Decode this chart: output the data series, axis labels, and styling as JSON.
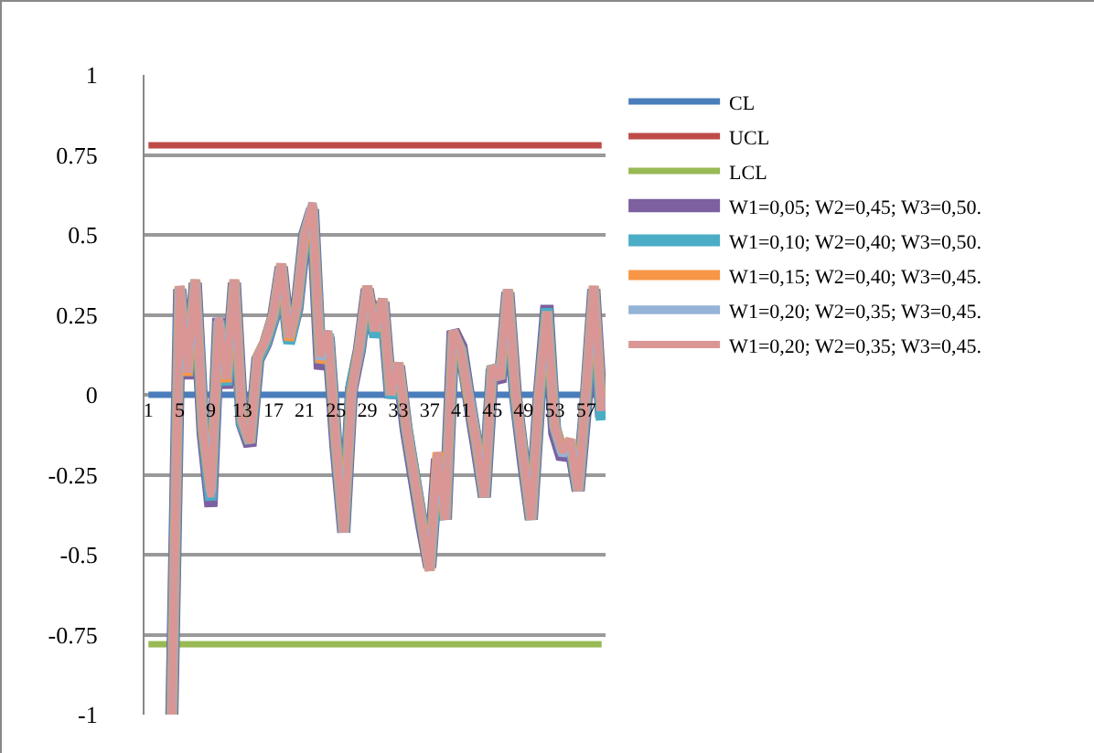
{
  "chart_data": {
    "type": "line",
    "categories": [
      "1",
      null,
      null,
      null,
      "5",
      null,
      null,
      null,
      "9",
      null,
      null,
      null,
      "13",
      null,
      null,
      null,
      "17",
      null,
      null,
      null,
      "21",
      null,
      null,
      null,
      "25",
      null,
      null,
      null,
      "29",
      null,
      null,
      null,
      "33",
      null,
      null,
      null,
      "37",
      null,
      null,
      null,
      "41",
      null,
      null,
      null,
      "45",
      null,
      null,
      null,
      "49",
      null,
      null,
      null,
      "53",
      null,
      null,
      null,
      "57",
      null,
      null
    ],
    "ylim": [
      -1,
      1
    ],
    "yticks": [
      -1,
      -0.75,
      -0.5,
      -0.25,
      0,
      0.25,
      0.5,
      0.75,
      1
    ],
    "grid": "y",
    "legend": "right",
    "marker": "none",
    "line_style": "solid",
    "series": [
      {
        "name": "CL",
        "color": "#4a7ebb",
        "values": [
          0,
          0,
          0,
          0,
          0,
          0,
          0,
          0,
          0,
          0,
          0,
          0,
          0,
          0,
          0,
          0,
          0,
          0,
          0,
          0,
          0,
          0,
          0,
          0,
          0,
          0,
          0,
          0,
          0,
          0,
          0,
          0,
          0,
          0,
          0,
          0,
          0,
          0,
          0,
          0,
          0,
          0,
          0,
          0,
          0,
          0,
          0,
          0,
          0,
          0,
          0,
          0,
          0,
          0,
          0,
          0,
          0,
          0,
          0
        ]
      },
      {
        "name": "UCL",
        "color": "#be4b48",
        "values": [
          0.78,
          0.78,
          0.78,
          0.78,
          0.78,
          0.78,
          0.78,
          0.78,
          0.78,
          0.78,
          0.78,
          0.78,
          0.78,
          0.78,
          0.78,
          0.78,
          0.78,
          0.78,
          0.78,
          0.78,
          0.78,
          0.78,
          0.78,
          0.78,
          0.78,
          0.78,
          0.78,
          0.78,
          0.78,
          0.78,
          0.78,
          0.78,
          0.78,
          0.78,
          0.78,
          0.78,
          0.78,
          0.78,
          0.78,
          0.78,
          0.78,
          0.78,
          0.78,
          0.78,
          0.78,
          0.78,
          0.78,
          0.78,
          0.78,
          0.78,
          0.78,
          0.78,
          0.78,
          0.78,
          0.78,
          0.78,
          0.78,
          0.78,
          0.78
        ]
      },
      {
        "name": "LCL",
        "color": "#98b954",
        "values": [
          -0.78,
          -0.78,
          -0.78,
          -0.78,
          -0.78,
          -0.78,
          -0.78,
          -0.78,
          -0.78,
          -0.78,
          -0.78,
          -0.78,
          -0.78,
          -0.78,
          -0.78,
          -0.78,
          -0.78,
          -0.78,
          -0.78,
          -0.78,
          -0.78,
          -0.78,
          -0.78,
          -0.78,
          -0.78,
          -0.78,
          -0.78,
          -0.78,
          -0.78,
          -0.78,
          -0.78,
          -0.78,
          -0.78,
          -0.78,
          -0.78,
          -0.78,
          -0.78,
          -0.78,
          -0.78,
          -0.78,
          -0.78,
          -0.78,
          -0.78,
          -0.78,
          -0.78,
          -0.78,
          -0.78,
          -0.78,
          -0.78,
          -0.78,
          -0.78,
          -0.78,
          -0.78,
          -0.78,
          -0.78,
          -0.78,
          -0.78,
          -0.78,
          -0.78
        ]
      },
      {
        "name": "W1=0,05; W2=0,45; W3=0,50.",
        "color": "#7d60a0",
        "values": [
          null,
          null,
          null,
          -1,
          0.33,
          0.05,
          0.35,
          -0.12,
          -0.35,
          0.24,
          0.02,
          0.35,
          -0.09,
          -0.16,
          0.11,
          0.16,
          0.24,
          0.4,
          0.17,
          0.27,
          0.5,
          0.58,
          0.08,
          0.18,
          -0.16,
          -0.43,
          0.02,
          0.14,
          0.33,
          0.19,
          0.29,
          -0.01,
          0.09,
          -0.11,
          -0.26,
          -0.41,
          -0.54,
          -0.2,
          -0.39,
          0.2,
          0.15,
          -0.01,
          -0.16,
          -0.32,
          0.08,
          0.04,
          0.32,
          -0.01,
          -0.21,
          -0.39,
          -0.01,
          0.28,
          -0.12,
          -0.2,
          -0.16,
          -0.3,
          -0.02,
          0.33,
          -0.07
        ]
      },
      {
        "name": "W1=0,10; W2=0,40; W3=0,50.",
        "color": "#4bacc6",
        "values": [
          null,
          null,
          null,
          -1,
          0.33,
          0.06,
          0.35,
          -0.11,
          -0.33,
          0.23,
          0.03,
          0.35,
          -0.09,
          -0.15,
          0.11,
          0.16,
          0.24,
          0.4,
          0.16,
          0.27,
          0.5,
          0.58,
          0.1,
          0.19,
          -0.15,
          -0.43,
          0.03,
          0.14,
          0.33,
          0.18,
          0.29,
          -0.01,
          0.09,
          -0.1,
          -0.25,
          -0.4,
          -0.54,
          -0.22,
          -0.39,
          0.19,
          0.14,
          -0.01,
          -0.15,
          -0.32,
          0.09,
          0.05,
          0.32,
          -0.01,
          -0.2,
          -0.39,
          -0.01,
          0.27,
          -0.1,
          -0.18,
          -0.15,
          -0.3,
          -0.01,
          0.33,
          -0.08
        ]
      },
      {
        "name": "W1=0,15; W2=0,40; W3=0,45.",
        "color": "#f79646",
        "values": [
          null,
          null,
          null,
          -1,
          0.34,
          0.06,
          0.36,
          -0.11,
          -0.3,
          0.23,
          0.04,
          0.36,
          -0.08,
          -0.15,
          0.12,
          0.17,
          0.25,
          0.41,
          0.17,
          0.28,
          0.5,
          0.59,
          0.1,
          0.19,
          -0.15,
          -0.43,
          0.01,
          0.15,
          0.34,
          0.2,
          0.3,
          0,
          0.1,
          -0.1,
          -0.25,
          -0.4,
          -0.55,
          -0.18,
          -0.39,
          0.2,
          0.14,
          -0.01,
          -0.15,
          -0.32,
          0.09,
          0.05,
          0.33,
          0,
          -0.2,
          -0.39,
          0,
          0.26,
          -0.1,
          -0.18,
          -0.14,
          -0.3,
          0,
          0.34,
          -0.05
        ]
      },
      {
        "name": "W1=0,20; W2=0,35; W3=0,45.",
        "color": "#95b3d7",
        "values": [
          null,
          null,
          null,
          -1,
          0.34,
          0.07,
          0.36,
          -0.1,
          -0.31,
          0.24,
          0.05,
          0.36,
          -0.08,
          -0.15,
          0.12,
          0.17,
          0.25,
          0.41,
          0.18,
          0.28,
          0.5,
          0.6,
          0.11,
          0.2,
          -0.15,
          -0.43,
          0,
          0.15,
          0.34,
          0.2,
          0.3,
          0,
          0.1,
          -0.1,
          -0.25,
          -0.4,
          -0.55,
          -0.19,
          -0.39,
          0.2,
          0.14,
          0,
          -0.15,
          -0.32,
          0.09,
          0.05,
          0.33,
          0,
          -0.2,
          -0.39,
          0,
          0.26,
          -0.1,
          -0.19,
          -0.14,
          -0.3,
          0,
          0.34,
          -0.05
        ]
      },
      {
        "name": "W1=0,20; W2=0,35; W3=0,45.",
        "color": "#d99694",
        "values": [
          null,
          null,
          null,
          -1,
          0.34,
          0.07,
          0.36,
          -0.1,
          -0.32,
          0.24,
          0.05,
          0.36,
          -0.08,
          -0.15,
          0.12,
          0.17,
          0.25,
          0.41,
          0.18,
          0.28,
          0.5,
          0.6,
          0.12,
          0.2,
          -0.15,
          -0.43,
          0,
          0.15,
          0.34,
          0.2,
          0.3,
          0,
          0.1,
          -0.1,
          -0.25,
          -0.4,
          -0.55,
          -0.18,
          -0.39,
          0.2,
          0.14,
          0,
          -0.15,
          -0.32,
          0.09,
          0.05,
          0.33,
          0,
          -0.2,
          -0.39,
          0,
          0.26,
          -0.1,
          -0.18,
          -0.14,
          -0.3,
          0,
          0.34,
          -0.05
        ]
      }
    ]
  }
}
